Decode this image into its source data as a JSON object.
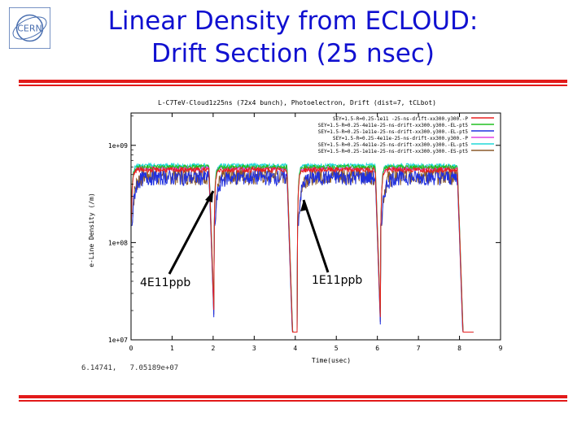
{
  "slide": {
    "title_line1": "Linear Density from ECLOUD:",
    "title_line2": "Drift Section (25 nsec)",
    "logo_text": "CERN",
    "readout": "6.14741,   7.05189e+07",
    "annotations": [
      "4E11ppb",
      "1E11ppb"
    ],
    "colors": {
      "title": "#1010d0",
      "rule": "#e21a1a"
    }
  },
  "chart_data": {
    "type": "line",
    "title": "L-C7TeV-Cloud1z25ns (72x4 bunch), Photoelectron, Drift (dist=7, tCLbot)",
    "xlabel": "Time(usec)",
    "ylabel": "e-Line Density (/m)",
    "xlim": [
      0,
      9
    ],
    "ylim": [
      10000000,
      1000000000
    ],
    "yscale": "log",
    "xticks": [
      "0",
      "1",
      "2",
      "3",
      "4",
      "5",
      "6",
      "7",
      "8",
      "9"
    ],
    "yticks": [
      "1e+07",
      "1e+08",
      "1e+09"
    ],
    "grid": false,
    "legend_position": "top-right",
    "train_windows_usec": [
      [
        0.0,
        1.9
      ],
      [
        2.02,
        3.8
      ],
      [
        4.05,
        5.95
      ],
      [
        6.08,
        7.95
      ]
    ],
    "series": [
      {
        "name": "SEY=1.5-R=0.25-1e11 -25-ns-drift-xx300.y300.-P",
        "color": "#e82020",
        "plateau": 560000000,
        "noise": 0.06
      },
      {
        "name": "SEY=1.5-R=0.25-4e11e-25-ns-drift-xx300.y300.-EL-pt5",
        "color": "#20c020",
        "plateau": 600000000,
        "noise": 0.05
      },
      {
        "name": "SEY=1.5-R=0.25-1e11e-25-ns-drift-xx300.y300.-EL-pt5",
        "color": "#2030e0",
        "plateau": 470000000,
        "noise": 0.18
      },
      {
        "name": "SEY=1.5-R=0.25-4e11e-25-ns-drift-xx300.y300.-P",
        "color": "#e040e0",
        "plateau": 580000000,
        "noise": 0.05
      },
      {
        "name": "SEY=1.5-R=0.25-4e11e-25-ns-drift-xx300.y300.-EL-pt5",
        "color": "#20d8d8",
        "plateau": 620000000,
        "noise": 0.05
      },
      {
        "name": "SEY=1.5-R=0.25-1e11e-25-ns-drift-xx300.y300.-ES-pt5",
        "color": "#8b5a2b",
        "plateau": 500000000,
        "noise": 0.22
      }
    ],
    "arrows": [
      {
        "label": "4E11ppb",
        "tip": [
          2.02,
          840000000
        ]
      },
      {
        "label": "1E11ppb",
        "tip": [
          4.2,
          800000000
        ]
      }
    ]
  }
}
